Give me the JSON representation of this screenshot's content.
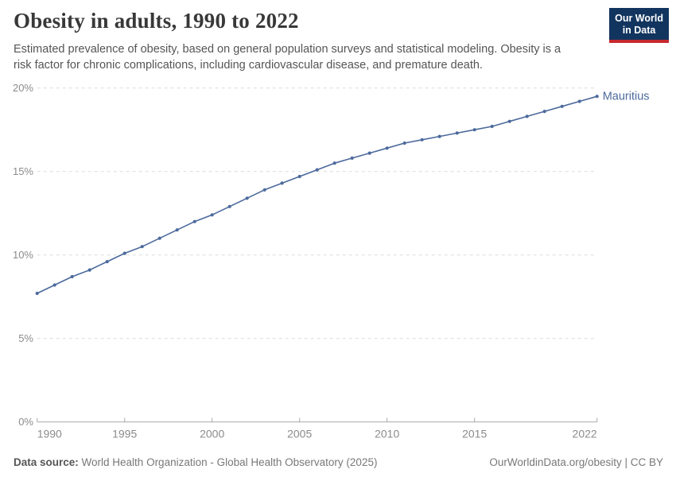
{
  "header": {
    "title": "Obesity in adults, 1990 to 2022",
    "subtitle_lines": [
      "Estimated prevalence of obesity, based on general population surveys and statistical modeling. Obesity is a",
      "risk factor for chronic complications, including cardiovascular disease, and premature death."
    ],
    "logo": {
      "line1": "Our World",
      "line2": "in Data"
    }
  },
  "colors": {
    "line": "#4C6A9C",
    "entity_label": "#4C6A9C",
    "grid": "#dcdcdc",
    "axis": "#a8a8a8",
    "tick_label": "#8b8b8b",
    "logo_bg": "#12355F",
    "logo_red": "#C7292F"
  },
  "chart_data": {
    "type": "line",
    "title": "Obesity in adults, 1990 to 2022",
    "xlabel": "",
    "ylabel": "",
    "xlim": [
      1990,
      2022
    ],
    "ylim": [
      0,
      20
    ],
    "grid": "horizontal-dashed",
    "legend_position": "end-of-line-label",
    "xticks": [
      {
        "value": 1990,
        "label": "1990"
      },
      {
        "value": 1995,
        "label": "1995"
      },
      {
        "value": 2000,
        "label": "2000"
      },
      {
        "value": 2005,
        "label": "2005"
      },
      {
        "value": 2010,
        "label": "2010"
      },
      {
        "value": 2015,
        "label": "2015"
      },
      {
        "value": 2022,
        "label": "2022"
      }
    ],
    "yticks": [
      {
        "value": 0,
        "label": "0%"
      },
      {
        "value": 5,
        "label": "5%"
      },
      {
        "value": 10,
        "label": "10%"
      },
      {
        "value": 15,
        "label": "15%"
      },
      {
        "value": 20,
        "label": "20%"
      }
    ],
    "series": [
      {
        "name": "Mauritius",
        "x": [
          1990,
          1991,
          1992,
          1993,
          1994,
          1995,
          1996,
          1997,
          1998,
          1999,
          2000,
          2001,
          2002,
          2003,
          2004,
          2005,
          2006,
          2007,
          2008,
          2009,
          2010,
          2011,
          2012,
          2013,
          2014,
          2015,
          2016,
          2017,
          2018,
          2019,
          2020,
          2021,
          2022
        ],
        "values": [
          7.7,
          8.2,
          8.7,
          9.1,
          9.6,
          10.1,
          10.5,
          11.0,
          11.5,
          12.0,
          12.4,
          12.9,
          13.4,
          13.9,
          14.3,
          14.7,
          15.1,
          15.5,
          15.8,
          16.1,
          16.4,
          16.7,
          16.9,
          17.1,
          17.3,
          17.5,
          17.7,
          18.0,
          18.3,
          18.6,
          18.9,
          19.2,
          19.5
        ]
      }
    ]
  },
  "footer": {
    "datasource_label": "Data source:",
    "datasource_text": " World Health Organization - Global Health Observatory (2025)",
    "rights": "OurWorldinData.org/obesity | CC BY"
  }
}
